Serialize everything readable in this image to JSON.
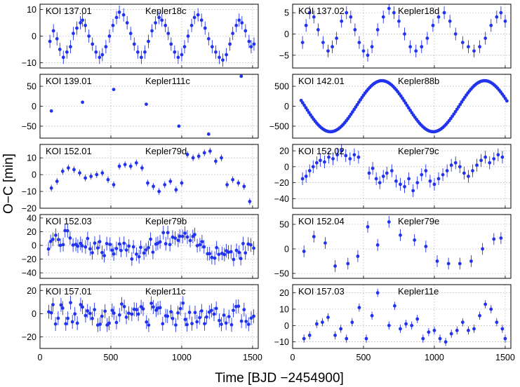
{
  "chart_data": {
    "type": "scatter",
    "xlabel": "Time [BJD −2454900]",
    "ylabel": "O−C [min]",
    "xlim": [
      0,
      1540
    ],
    "xticks": [
      0,
      500,
      1000,
      1500
    ],
    "point_color": "#2233ee",
    "panels": [
      {
        "koi": "KOI 137.01",
        "planet": "Kepler18c",
        "ylim": [
          -12,
          12
        ],
        "yticks": [
          -10,
          0,
          10
        ],
        "err": 2.5,
        "x": [
          70,
          95,
          120,
          140,
          165,
          190,
          215,
          235,
          260,
          285,
          300,
          320,
          345,
          370,
          395,
          420,
          440,
          465,
          490,
          515,
          540,
          560,
          590,
          615,
          640,
          665,
          690,
          715,
          740,
          765,
          790,
          815,
          840,
          860,
          885,
          905,
          925,
          950,
          975,
          1000,
          1020,
          1045,
          1070,
          1090,
          1115,
          1140,
          1165,
          1190,
          1215,
          1240,
          1265,
          1290,
          1315,
          1340,
          1360,
          1385,
          1405,
          1425,
          1450,
          1475,
          1490,
          1510
        ],
        "y": [
          -2,
          2,
          -1,
          -5,
          -8,
          -6,
          -4,
          1,
          3,
          5,
          6,
          4,
          0,
          -3,
          -6,
          -8,
          -7,
          -4,
          0,
          4,
          7,
          9,
          8,
          5,
          1,
          -3,
          -6,
          -8,
          -6,
          -2,
          2,
          5,
          7,
          6,
          4,
          1,
          -3,
          -6,
          -8,
          -7,
          -4,
          0,
          4,
          7,
          8,
          6,
          3,
          -1,
          -4,
          -6,
          -8,
          -9,
          -7,
          -3,
          1,
          4,
          6,
          5,
          2,
          -2,
          -4,
          -3
        ]
      },
      {
        "koi": "KOI 137.02",
        "planet": "Kepler18d",
        "ylim": [
          -8,
          7
        ],
        "yticks": [
          -5,
          0,
          5
        ],
        "err": 1.5,
        "x": [
          70,
          95,
          120,
          150,
          180,
          215,
          250,
          280,
          310,
          345,
          380,
          410,
          440,
          470,
          500,
          530,
          560,
          600,
          640,
          680,
          715,
          750,
          790,
          830,
          870,
          910,
          950,
          990,
          1030,
          1070,
          1110,
          1150,
          1200,
          1240,
          1280,
          1320,
          1360,
          1400,
          1440,
          1470,
          1500
        ],
        "y": [
          -2,
          2,
          5,
          4,
          1,
          -2,
          -4,
          -3,
          -1,
          3,
          5,
          4,
          1,
          -2,
          -4,
          -5,
          -3,
          1,
          4,
          6,
          5,
          3,
          0,
          -3,
          -4,
          -3,
          -1,
          2,
          4,
          5,
          3,
          0,
          -2,
          -3,
          -4,
          -3,
          -1,
          2,
          4,
          5,
          3
        ]
      },
      {
        "koi": "KOI 139.01",
        "planet": "Kepler111c",
        "ylim": [
          -80,
          80
        ],
        "yticks": [
          -50,
          0,
          50
        ],
        "err": 2,
        "x": [
          80,
          300,
          520,
          750,
          980,
          1190,
          1420
        ],
        "y": [
          -12,
          10,
          42,
          5,
          -50,
          -70,
          75
        ]
      },
      {
        "koi": "KOI 142.01",
        "planet": "Kepler88b",
        "ylim": [
          -800,
          800
        ],
        "yticks": [
          -500,
          0,
          500
        ],
        "err": 10,
        "curve": true,
        "period": 725,
        "amplitude": 640,
        "phase_x": 630,
        "x_start": 60,
        "x_end": 1515
      },
      {
        "koi": "KOI 152.01",
        "planet": "Kepler79d",
        "ylim": [
          -20,
          18
        ],
        "yticks": [
          -20,
          -10,
          0,
          10
        ],
        "err": 2,
        "x": [
          80,
          120,
          160,
          200,
          240,
          280,
          320,
          360,
          400,
          440,
          480,
          520,
          560,
          600,
          640,
          680,
          720,
          760,
          800,
          840,
          880,
          920,
          960,
          1000,
          1040,
          1080,
          1120,
          1160,
          1200,
          1240,
          1280,
          1320,
          1360,
          1400,
          1440,
          1480
        ],
        "y": [
          -8,
          -4,
          2,
          4,
          3,
          1,
          -2,
          -1,
          0,
          1,
          -3,
          -6,
          5,
          6,
          5,
          7,
          4,
          -5,
          -7,
          -10,
          -6,
          -4,
          -9,
          -5,
          12,
          10,
          11,
          13,
          14,
          8,
          10,
          -6,
          -3,
          -5,
          -7,
          -16
        ]
      },
      {
        "koi": "KOI 152.02",
        "planet": "Kepler79c",
        "ylim": [
          -52,
          28
        ],
        "yticks": [
          -40,
          -20,
          0,
          20
        ],
        "err": 8,
        "x": [
          70,
          95,
          120,
          145,
          170,
          195,
          225,
          255,
          285,
          315,
          345,
          375,
          405,
          435,
          465,
          540,
          565,
          590,
          615,
          640,
          665,
          700,
          730,
          760,
          790,
          820,
          850,
          880,
          910,
          940,
          970,
          1000,
          1030,
          1060,
          1090,
          1120,
          1150,
          1180,
          1210,
          1240,
          1270,
          1300,
          1330,
          1360,
          1390,
          1420,
          1450,
          1480
        ],
        "y": [
          -15,
          -12,
          -5,
          0,
          5,
          8,
          6,
          12,
          10,
          15,
          20,
          14,
          10,
          15,
          12,
          -8,
          -2,
          -15,
          -20,
          -12,
          -8,
          -5,
          -18,
          -22,
          -25,
          -15,
          -30,
          -20,
          -10,
          -5,
          -18,
          -22,
          -15,
          -10,
          -5,
          2,
          5,
          0,
          -8,
          -12,
          -5,
          2,
          8,
          12,
          5,
          10,
          15,
          12
        ]
      },
      {
        "koi": "KOI 152.03",
        "planet": "Kepler79b",
        "ylim": [
          -48,
          45
        ],
        "yticks": [
          -40,
          -20,
          0,
          20,
          40
        ],
        "err": 10,
        "seed": 7,
        "count": 85,
        "trend": "noisy_sine",
        "amp": 16,
        "period": 760,
        "x_start": 60,
        "x_end": 1505
      },
      {
        "koi": "KOI 152.04",
        "planet": "Kepler79e",
        "ylim": [
          -60,
          70
        ],
        "yticks": [
          -50,
          0,
          50
        ],
        "err": 12,
        "x": [
          80,
          150,
          230,
          300,
          390,
          460,
          530,
          600,
          680,
          760,
          860,
          940,
          1020,
          1100,
          1180,
          1260,
          1340,
          1420,
          1470
        ],
        "y": [
          -5,
          25,
          12,
          -35,
          -30,
          -15,
          45,
          8,
          55,
          28,
          18,
          5,
          -25,
          -30,
          -30,
          -25,
          0,
          20,
          22
        ]
      },
      {
        "koi": "KOI 157.01",
        "planet": "Kepler11c",
        "ylim": [
          -30,
          25
        ],
        "yticks": [
          -20,
          0,
          20
        ],
        "err": 6,
        "seed": 13,
        "count": 85,
        "trend": "noise",
        "amp": 10,
        "x_start": 60,
        "x_end": 1505
      },
      {
        "koi": "KOI 157.03",
        "planet": "Kepler11e",
        "ylim": [
          -14,
          25
        ],
        "yticks": [
          -10,
          0,
          10,
          20
        ],
        "err": 2.5,
        "x": [
          80,
          120,
          170,
          210,
          250,
          300,
          340,
          380,
          420,
          470,
          520,
          560,
          600,
          680,
          720,
          760,
          800,
          840,
          880,
          920,
          960,
          1000,
          1040,
          1080,
          1120,
          1160,
          1200,
          1240,
          1280,
          1320,
          1360,
          1400,
          1440,
          1480,
          1500
        ],
        "y": [
          -8,
          -6,
          1,
          2,
          5,
          -6,
          -2,
          -8,
          2,
          11,
          -8,
          6,
          20,
          0,
          12,
          -2,
          1,
          0,
          4,
          -8,
          -4,
          -3,
          -8,
          -10,
          -5,
          -3,
          2,
          -3,
          -2,
          6,
          13,
          10,
          2,
          -2,
          -8
        ]
      }
    ]
  }
}
